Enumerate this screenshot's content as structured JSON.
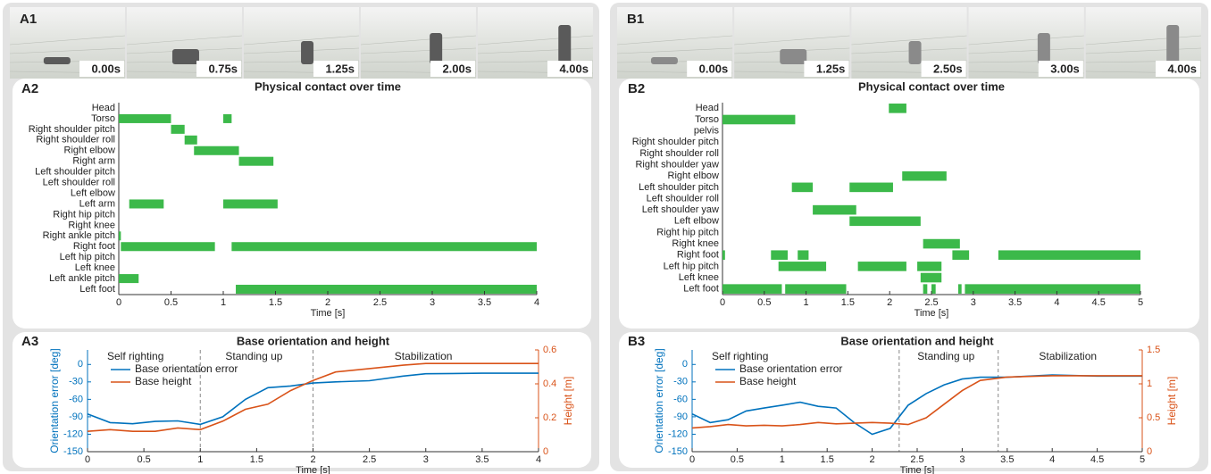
{
  "panels": [
    {
      "label": "A1",
      "frames": [
        "0.00s",
        "0.75s",
        "1.25s",
        "2.00s",
        "4.00s"
      ]
    },
    {
      "label": "B1",
      "frames": [
        "0.00s",
        "1.25s",
        "2.50s",
        "3.00s",
        "4.00s"
      ]
    }
  ],
  "chart_data": [
    {
      "type": "timeline",
      "label": "A2",
      "title": "Physical contact over time",
      "xlabel": "Time [s]",
      "color": "#3cb94a",
      "categories": [
        "Head",
        "Torso",
        "Right shoulder pitch",
        "Right shoulder roll",
        "Right elbow",
        "Right arm",
        "Left shoulder pitch",
        "Left shoulder roll",
        "Left elbow",
        "Left arm",
        "Right hip pitch",
        "Right knee",
        "Right ankle pitch",
        "Right foot",
        "Left hip pitch",
        "Left knee",
        "Left ankle pitch",
        "Left foot"
      ],
      "intervals": [
        [],
        [
          [
            0,
            0.5
          ],
          [
            1.0,
            1.08
          ]
        ],
        [
          [
            0.5,
            0.63
          ]
        ],
        [
          [
            0.63,
            0.75
          ]
        ],
        [
          [
            0.72,
            1.15
          ]
        ],
        [
          [
            1.15,
            1.48
          ]
        ],
        [],
        [],
        [],
        [
          [
            0.1,
            0.43
          ],
          [
            1.0,
            1.52
          ]
        ],
        [],
        [],
        [
          [
            0,
            0.02
          ]
        ],
        [
          [
            0.02,
            0.92
          ],
          [
            1.08,
            4
          ]
        ],
        [],
        [],
        [
          [
            0,
            0.19
          ]
        ],
        [
          [
            1.12,
            4
          ]
        ]
      ],
      "xlim": [
        0,
        4
      ],
      "xticks": [
        0,
        0.5,
        1,
        1.5,
        2,
        2.5,
        3,
        3.5,
        4
      ]
    },
    {
      "type": "timeline",
      "label": "B2",
      "title": "Physical contact over time",
      "xlabel": "Time [s]",
      "color": "#3cb94a",
      "categories": [
        "Head",
        "Torso",
        "pelvis",
        "Right shoulder pitch",
        "Right shoulder roll",
        "Right shoulder yaw",
        "Right elbow",
        "Left shoulder pitch",
        "Left shoulder roll",
        "Left shoulder yaw",
        "Left elbow",
        "Right hip pitch",
        "Right knee",
        "Right foot",
        "Left hip pitch",
        "Left knee",
        "Left foot"
      ],
      "intervals": [
        [
          [
            1.99,
            2.2
          ]
        ],
        [
          [
            0,
            0.87
          ]
        ],
        [],
        [],
        [],
        [],
        [
          [
            2.15,
            2.68
          ]
        ],
        [
          [
            0.83,
            1.08
          ],
          [
            1.52,
            2.04
          ]
        ],
        [],
        [
          [
            1.08,
            1.6
          ]
        ],
        [
          [
            1.52,
            2.37
          ]
        ],
        [],
        [
          [
            2.4,
            2.84
          ]
        ],
        [
          [
            0,
            0.03
          ],
          [
            0.58,
            0.78
          ],
          [
            0.9,
            1.03
          ],
          [
            2.75,
            2.95
          ],
          [
            3.3,
            5
          ]
        ],
        [
          [
            0.67,
            1.24
          ],
          [
            1.62,
            2.2
          ],
          [
            2.33,
            2.62
          ]
        ],
        [
          [
            2.37,
            2.62
          ]
        ],
        [
          [
            0,
            0.71
          ],
          [
            0.75,
            1.48
          ],
          [
            2.4,
            2.45
          ],
          [
            2.5,
            2.55
          ],
          [
            2.82,
            2.86
          ],
          [
            2.9,
            5
          ]
        ]
      ],
      "xlim": [
        0,
        5
      ],
      "xticks": [
        0,
        0.5,
        1,
        1.5,
        2,
        2.5,
        3,
        3.5,
        4,
        4.5,
        5
      ]
    },
    {
      "type": "line",
      "label": "A3",
      "title": "Base orientation and height",
      "xlabel": "Time [s]",
      "ylabel": "Orientation error [deg]",
      "y2label": "Height [m]",
      "x": [
        0,
        0.2,
        0.4,
        0.6,
        0.8,
        1.0,
        1.2,
        1.4,
        1.6,
        1.8,
        2.0,
        2.2,
        2.5,
        2.8,
        3.0,
        3.5,
        4.0
      ],
      "series": [
        {
          "name": "Base orientation error",
          "color": "#0072bd",
          "values": [
            -85,
            -100,
            -102,
            -98,
            -97,
            -103,
            -90,
            -60,
            -40,
            -37,
            -32,
            -30,
            -28,
            -20,
            -16,
            -15,
            -15
          ]
        },
        {
          "name": "Base height",
          "color": "#d95319",
          "axis": "y2",
          "values": [
            0.12,
            0.13,
            0.12,
            0.12,
            0.14,
            0.13,
            0.18,
            0.25,
            0.28,
            0.36,
            0.42,
            0.47,
            0.49,
            0.51,
            0.52,
            0.52,
            0.52
          ]
        }
      ],
      "xlim": [
        0,
        4
      ],
      "xticks": [
        0,
        0.5,
        1,
        1.5,
        2,
        2.5,
        3,
        3.5,
        4
      ],
      "ylim": [
        -150,
        25
      ],
      "yticks": [
        0,
        -30,
        -60,
        -90,
        -120,
        -150
      ],
      "y2lim": [
        0,
        0.6
      ],
      "y2ticks": [
        0,
        0.2,
        0.4,
        0.6
      ],
      "vlines": [
        1,
        2
      ],
      "annotations": [
        "Self righting",
        "Standing up",
        "Stabilization"
      ],
      "legend": "upper left"
    },
    {
      "type": "line",
      "label": "B3",
      "title": "Base orientation and height",
      "xlabel": "Time [s]",
      "ylabel": "Orientation error [deg]",
      "y2label": "Height [m]",
      "x": [
        0,
        0.2,
        0.4,
        0.6,
        0.8,
        1.0,
        1.2,
        1.4,
        1.6,
        1.8,
        2.0,
        2.2,
        2.4,
        2.6,
        2.8,
        3.0,
        3.2,
        3.5,
        4.0,
        4.5,
        5.0
      ],
      "series": [
        {
          "name": "Base orientation error",
          "color": "#0072bd",
          "values": [
            -85,
            -100,
            -95,
            -80,
            -75,
            -70,
            -65,
            -72,
            -75,
            -100,
            -120,
            -110,
            -70,
            -50,
            -35,
            -25,
            -22,
            -22,
            -18,
            -20,
            -20
          ]
        },
        {
          "name": "Base height",
          "color": "#d95319",
          "axis": "y2",
          "values": [
            0.35,
            0.37,
            0.4,
            0.38,
            0.39,
            0.38,
            0.4,
            0.43,
            0.41,
            0.42,
            0.43,
            0.42,
            0.4,
            0.5,
            0.7,
            0.9,
            1.05,
            1.1,
            1.12,
            1.12,
            1.12
          ]
        }
      ],
      "xlim": [
        0,
        5
      ],
      "xticks": [
        0,
        0.5,
        1,
        1.5,
        2,
        2.5,
        3,
        3.5,
        4,
        4.5,
        5
      ],
      "ylim": [
        -150,
        25
      ],
      "yticks": [
        0,
        -30,
        -60,
        -90,
        -120,
        -150
      ],
      "y2lim": [
        0,
        1.5
      ],
      "y2ticks": [
        0,
        0.5,
        1,
        1.5
      ],
      "vlines": [
        2.3,
        3.4
      ],
      "annotations": [
        "Self righting",
        "Standing up",
        "Stabilization"
      ],
      "legend": "upper left"
    }
  ]
}
